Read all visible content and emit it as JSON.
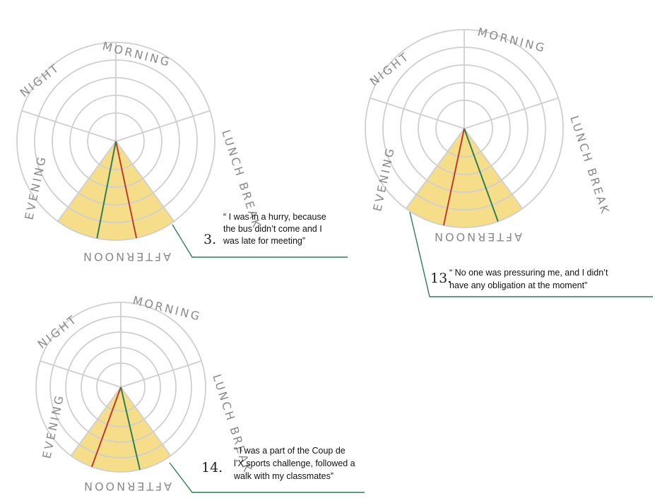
{
  "segment_labels": [
    "MORNING",
    "LUNCH BREAK",
    "AFTERNOON",
    "EVENING",
    "NIGHT"
  ],
  "colors": {
    "ring": "#cfcfcf",
    "wedge": "#f6dd8a",
    "red": "#c0392b",
    "green": "#2e7d53"
  },
  "diagrams": [
    {
      "number": "3.",
      "quote_lines": [
        "“ I was in a hurry, because",
        "the bus didn’t come and I",
        "was late for meeting”"
      ],
      "selected_segment": "AFTERNOON",
      "red_line_angle_deg": 168,
      "green_line_angle_deg": 191
    },
    {
      "number": "13.",
      "quote_lines": [
        "“ No one was pressuring me, and I didn’t",
        "have any obligation at the moment”"
      ],
      "selected_segment": "AFTERNOON",
      "red_line_angle_deg": 192,
      "green_line_angle_deg": 160
    },
    {
      "number": "14.",
      "quote_lines": [
        "“ I was a part of the Coup de",
        "l’X sports challenge, followed a",
        "walk with my classmates”"
      ],
      "selected_segment": "AFTERNOON",
      "red_line_angle_deg": 200,
      "green_line_angle_deg": 167
    }
  ]
}
